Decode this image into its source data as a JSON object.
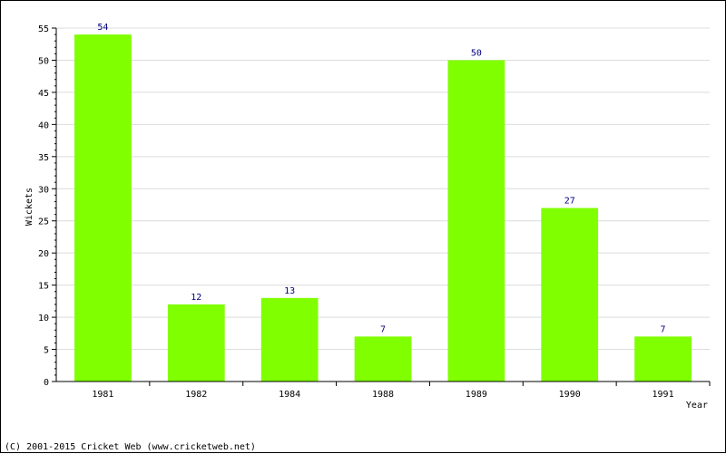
{
  "chart_data": {
    "type": "bar",
    "categories": [
      "1981",
      "1982",
      "1984",
      "1988",
      "1989",
      "1990",
      "1991"
    ],
    "values": [
      54,
      12,
      13,
      7,
      50,
      27,
      7
    ],
    "xlabel": "Year",
    "ylabel": "Wickets",
    "ylim": [
      0,
      55
    ],
    "yticks": [
      0,
      5,
      10,
      15,
      20,
      25,
      30,
      35,
      40,
      45,
      50,
      55
    ],
    "grid": true,
    "legend": "none",
    "bar_color": "#80ff00",
    "value_label_color": "#000080",
    "grid_color": "#dcdcdc"
  },
  "footer": {
    "copyright": "(C) 2001-2015 Cricket Web (www.cricketweb.net)"
  }
}
